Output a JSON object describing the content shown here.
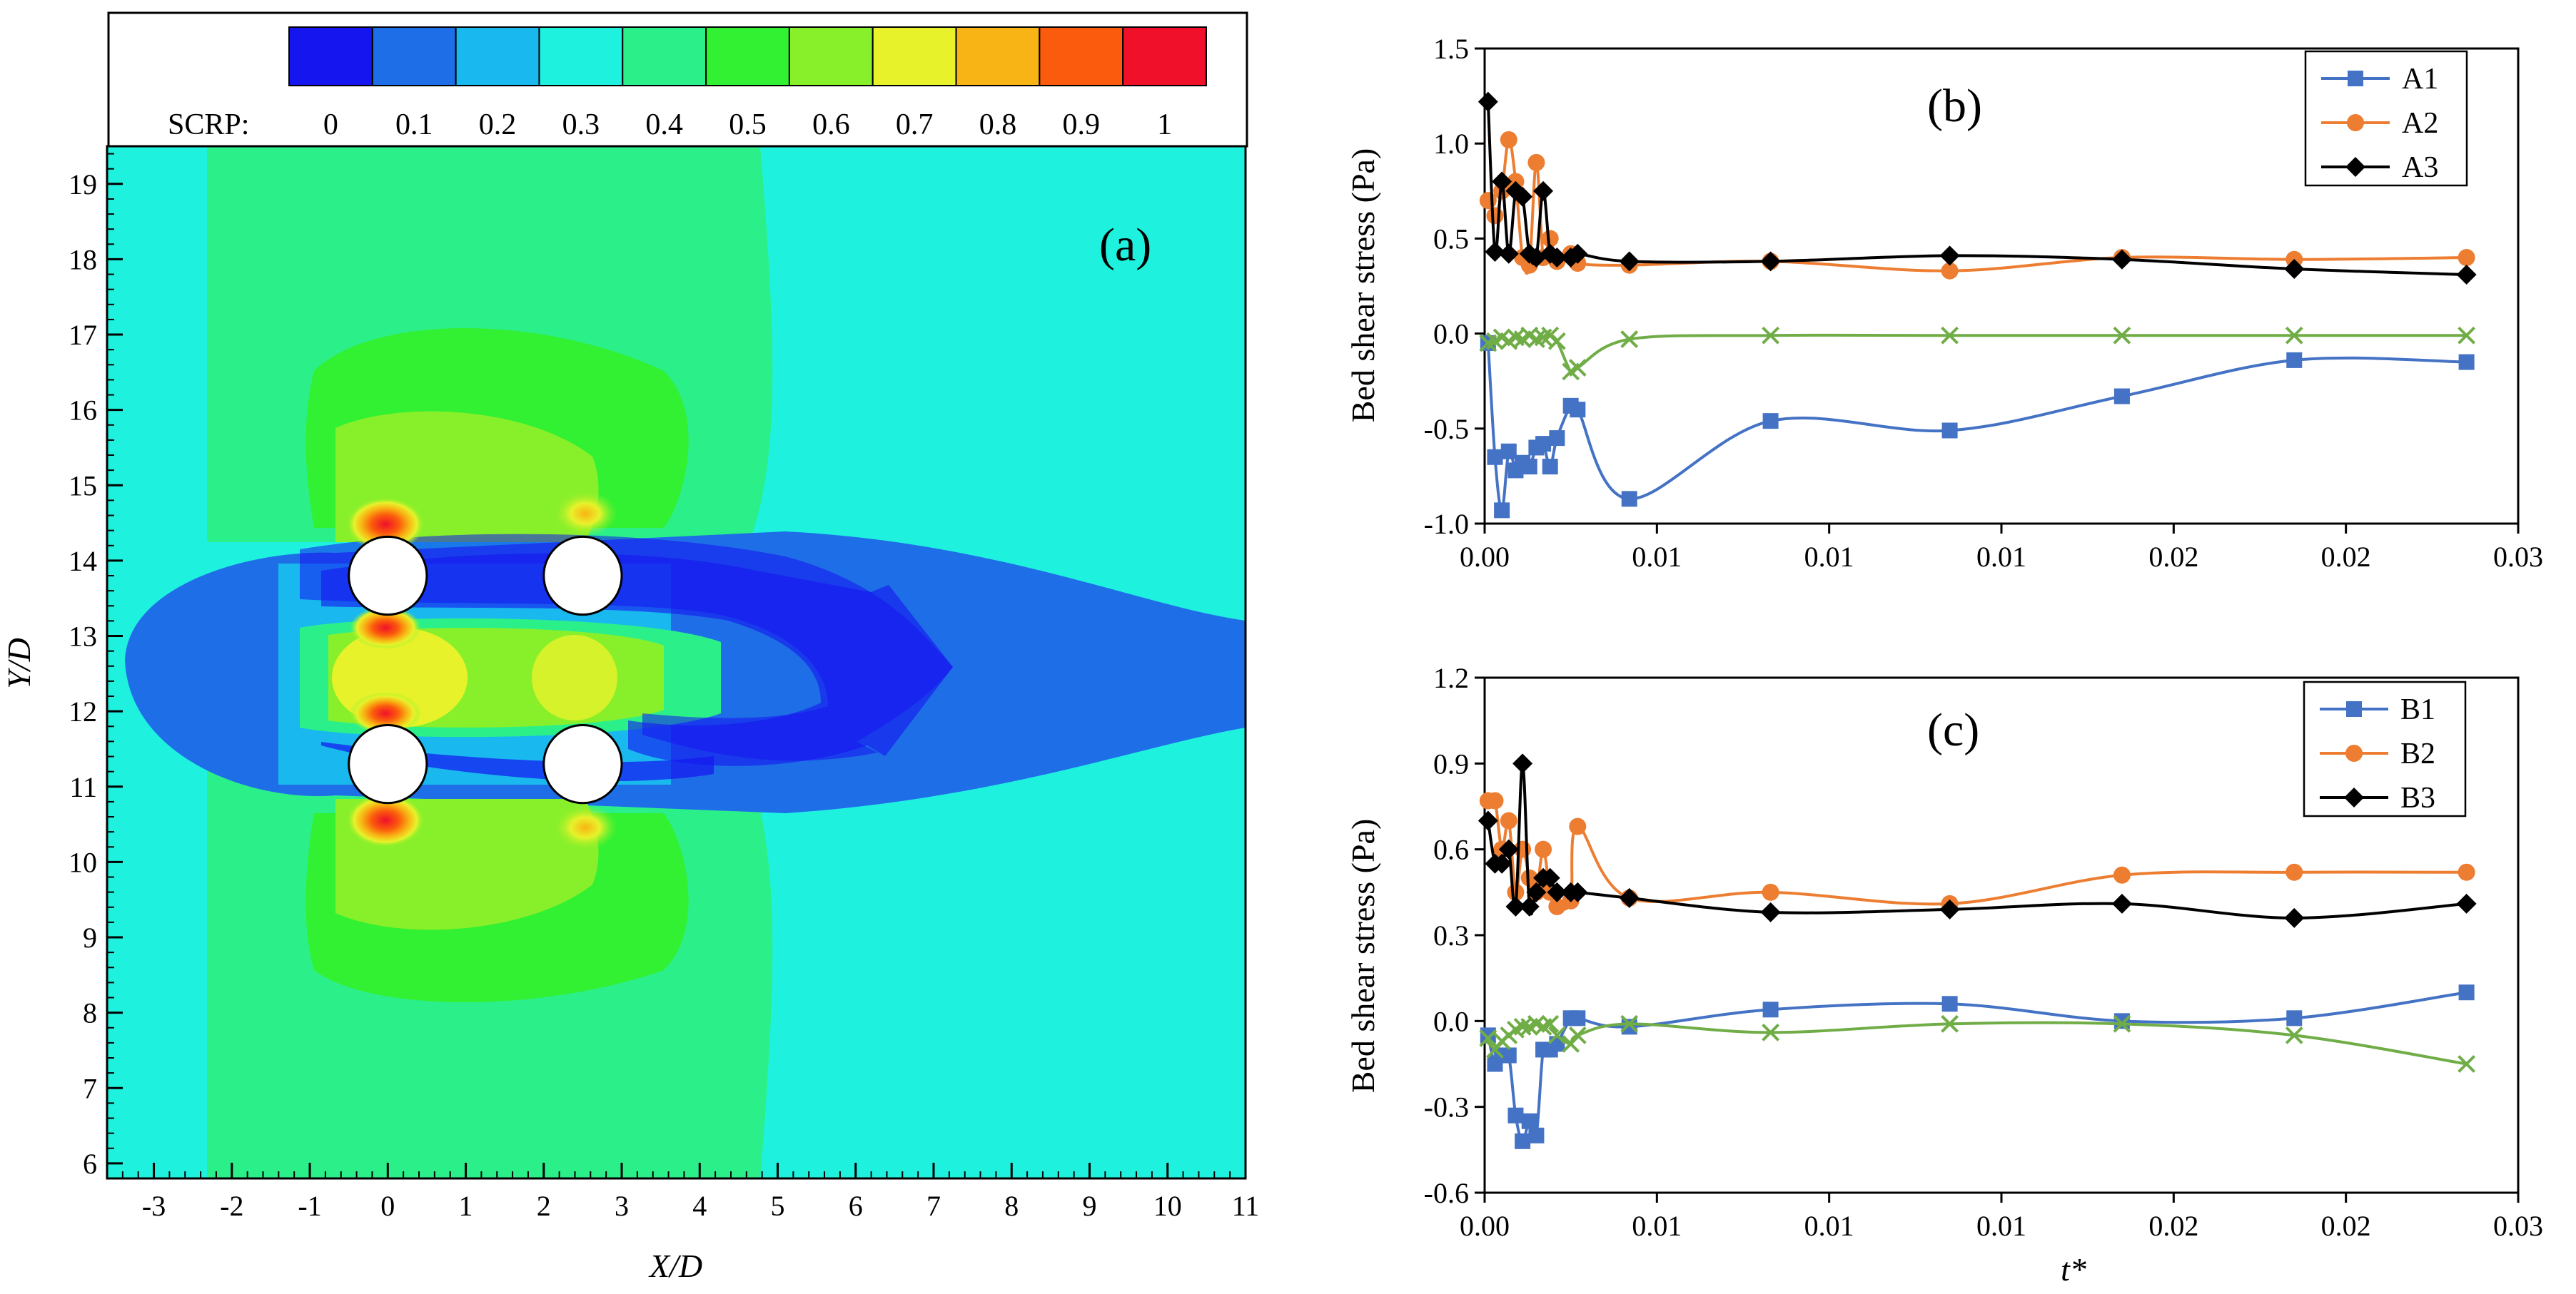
{
  "chart_data": [
    {
      "type": "heatmap",
      "panel_label": "(a)",
      "xlabel": "X/D",
      "ylabel": "Y/D",
      "xlim": [
        -3.6,
        11
      ],
      "ylim": [
        5.8,
        19.5
      ],
      "xticks": [
        "-3",
        "-2",
        "-1",
        "0",
        "1",
        "2",
        "3",
        "4",
        "5",
        "6",
        "7",
        "8",
        "9",
        "10",
        "11"
      ],
      "yticks": [
        "6",
        "7",
        "8",
        "9",
        "10",
        "11",
        "12",
        "13",
        "14",
        "15",
        "16",
        "17",
        "18",
        "19"
      ],
      "colorbar": {
        "label": "SCRP:",
        "tick_labels": [
          "0",
          "0.1",
          "0.2",
          "0.3",
          "0.4",
          "0.5",
          "0.6",
          "0.7",
          "0.8",
          "0.9",
          "1"
        ],
        "colors": [
          "#1515f0",
          "#1e6ee8",
          "#19b8ee",
          "#1ef2df",
          "#2bf08a",
          "#32f032",
          "#88f02a",
          "#e8f22b",
          "#f8b414",
          "#fb5b0c",
          "#f0102a"
        ]
      },
      "cylinders": [
        {
          "x": 0,
          "y": 13.8
        },
        {
          "x": 2.5,
          "y": 13.8
        },
        {
          "x": 0,
          "y": 11.3
        },
        {
          "x": 2.5,
          "y": 11.3
        }
      ]
    },
    {
      "type": "line",
      "panel_label": "(b)",
      "xlabel": "",
      "ylabel": "Bed shear stress (Pa)",
      "xlim": [
        0,
        0.03
      ],
      "ylim": [
        -1.0,
        1.5
      ],
      "xticks": [
        "0.00",
        "0.01",
        "0.01",
        "0.01",
        "0.02",
        "0.02",
        "0.03"
      ],
      "yticks": [
        "-1.0",
        "-0.5",
        "0.0",
        "0.5",
        "1.0",
        "1.5"
      ],
      "legend_position": "top-right",
      "series": [
        {
          "name": "A1",
          "color": "#4472c4",
          "marker": "square",
          "in_legend": true,
          "x": [
            0.0001,
            0.0003,
            0.0005,
            0.0007,
            0.0009,
            0.0011,
            0.0013,
            0.0015,
            0.0017,
            0.0019,
            0.0021,
            0.0025,
            0.0027,
            0.0042,
            0.0083,
            0.0135,
            0.0185,
            0.0235,
            0.0285
          ],
          "y": [
            -0.05,
            -0.65,
            -0.93,
            -0.62,
            -0.72,
            -0.68,
            -0.7,
            -0.6,
            -0.58,
            -0.7,
            -0.55,
            -0.38,
            -0.4,
            -0.87,
            -0.46,
            -0.51,
            -0.33,
            -0.14,
            -0.15
          ]
        },
        {
          "name": "A2",
          "color": "#ed7d31",
          "marker": "circle",
          "in_legend": true,
          "x": [
            0.0001,
            0.0003,
            0.0005,
            0.0007,
            0.0009,
            0.0011,
            0.0013,
            0.0015,
            0.0017,
            0.0019,
            0.0021,
            0.0025,
            0.0027,
            0.0042,
            0.0083,
            0.0135,
            0.0185,
            0.0235,
            0.0285
          ],
          "y": [
            0.7,
            0.62,
            0.75,
            1.02,
            0.8,
            0.4,
            0.36,
            0.9,
            0.4,
            0.5,
            0.38,
            0.42,
            0.37,
            0.36,
            0.38,
            0.33,
            0.4,
            0.39,
            0.4
          ]
        },
        {
          "name": "A3",
          "color": "#000000",
          "marker": "diamond",
          "in_legend": true,
          "x": [
            0.0001,
            0.0003,
            0.0005,
            0.0007,
            0.0009,
            0.0011,
            0.0013,
            0.0015,
            0.0017,
            0.0019,
            0.0021,
            0.0025,
            0.0027,
            0.0042,
            0.0083,
            0.0135,
            0.0185,
            0.0235,
            0.0285
          ],
          "y": [
            1.22,
            0.43,
            0.8,
            0.42,
            0.75,
            0.72,
            0.42,
            0.4,
            0.75,
            0.42,
            0.4,
            0.4,
            0.42,
            0.38,
            0.38,
            0.41,
            0.39,
            0.34,
            0.31
          ]
        },
        {
          "name": "",
          "color": "#70ad47",
          "marker": "x",
          "in_legend": false,
          "x": [
            0.0001,
            0.0003,
            0.0005,
            0.0007,
            0.0009,
            0.0011,
            0.0013,
            0.0015,
            0.0017,
            0.0019,
            0.0021,
            0.0025,
            0.0027,
            0.0042,
            0.0083,
            0.0135,
            0.0185,
            0.0235,
            0.0285
          ],
          "y": [
            -0.05,
            -0.04,
            -0.02,
            -0.04,
            -0.02,
            -0.03,
            -0.01,
            -0.03,
            -0.02,
            -0.01,
            -0.04,
            -0.2,
            -0.18,
            -0.03,
            -0.01,
            -0.01,
            -0.01,
            -0.01,
            -0.01
          ]
        }
      ]
    },
    {
      "type": "line",
      "panel_label": "(c)",
      "xlabel": "t*",
      "ylabel": "Bed shear stress (Pa)",
      "xlim": [
        0,
        0.03
      ],
      "ylim": [
        -0.6,
        1.2
      ],
      "xticks": [
        "0.00",
        "0.01",
        "0.01",
        "0.01",
        "0.02",
        "0.02",
        "0.03"
      ],
      "yticks": [
        "-0.6",
        "-0.3",
        "0.0",
        "0.3",
        "0.6",
        "0.9",
        "1.2"
      ],
      "legend_position": "top-right",
      "series": [
        {
          "name": "B1",
          "color": "#4472c4",
          "marker": "square",
          "in_legend": true,
          "x": [
            0.0001,
            0.0003,
            0.0005,
            0.0007,
            0.0009,
            0.0011,
            0.0013,
            0.0015,
            0.0017,
            0.0019,
            0.0021,
            0.0025,
            0.0027,
            0.0042,
            0.0083,
            0.0135,
            0.0185,
            0.0235,
            0.0285
          ],
          "y": [
            -0.05,
            -0.15,
            -0.12,
            -0.12,
            -0.33,
            -0.42,
            -0.35,
            -0.4,
            -0.1,
            -0.1,
            -0.08,
            0.01,
            0.01,
            -0.02,
            0.04,
            0.06,
            0.0,
            0.01,
            0.1
          ]
        },
        {
          "name": "B2",
          "color": "#ed7d31",
          "marker": "circle",
          "in_legend": true,
          "x": [
            0.0001,
            0.0003,
            0.0005,
            0.0007,
            0.0009,
            0.0011,
            0.0013,
            0.0015,
            0.0017,
            0.0019,
            0.0021,
            0.0025,
            0.0027,
            0.0042,
            0.0083,
            0.0135,
            0.0185,
            0.0235,
            0.0285
          ],
          "y": [
            0.77,
            0.77,
            0.6,
            0.7,
            0.45,
            0.6,
            0.5,
            0.45,
            0.6,
            0.45,
            0.4,
            0.42,
            0.68,
            0.43,
            0.45,
            0.41,
            0.51,
            0.52,
            0.52
          ]
        },
        {
          "name": "B3",
          "color": "#000000",
          "marker": "diamond",
          "in_legend": true,
          "x": [
            0.0001,
            0.0003,
            0.0005,
            0.0007,
            0.0009,
            0.0011,
            0.0013,
            0.0015,
            0.0017,
            0.0019,
            0.0021,
            0.0025,
            0.0027,
            0.0042,
            0.0083,
            0.0135,
            0.0185,
            0.0235,
            0.0285
          ],
          "y": [
            0.7,
            0.55,
            0.55,
            0.6,
            0.4,
            0.9,
            0.4,
            0.45,
            0.5,
            0.5,
            0.45,
            0.45,
            0.45,
            0.43,
            0.38,
            0.39,
            0.41,
            0.36,
            0.41
          ]
        },
        {
          "name": "",
          "color": "#70ad47",
          "marker": "x",
          "in_legend": false,
          "x": [
            0.0001,
            0.0003,
            0.0005,
            0.0007,
            0.0009,
            0.0011,
            0.0013,
            0.0015,
            0.0017,
            0.0019,
            0.0021,
            0.0025,
            0.0027,
            0.0042,
            0.0083,
            0.0135,
            0.0185,
            0.0235,
            0.0285
          ],
          "y": [
            -0.06,
            -0.1,
            -0.07,
            -0.05,
            -0.03,
            -0.02,
            -0.02,
            -0.01,
            -0.02,
            -0.01,
            -0.05,
            -0.08,
            -0.05,
            -0.01,
            -0.04,
            -0.01,
            -0.01,
            -0.05,
            -0.15
          ]
        }
      ]
    }
  ]
}
